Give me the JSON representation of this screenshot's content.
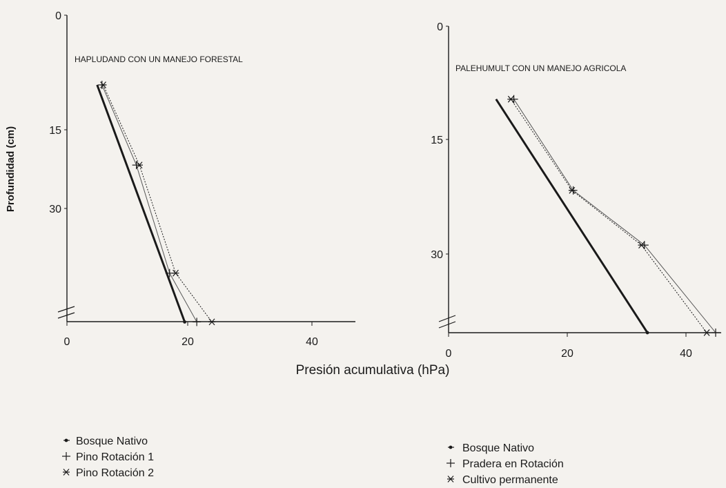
{
  "chart_data": [
    {
      "type": "line",
      "title": "HAPLUDAND CON UN MANEJO FORESTAL",
      "ylabel": "Profundidad (cm)",
      "xlim": [
        0,
        47
      ],
      "ylim": [
        0,
        44
      ],
      "x_ticks": [
        "0",
        "20",
        "40"
      ],
      "y_ticks": [
        "0",
        "15",
        "30"
      ],
      "series": [
        {
          "name": "Bosque Nativo",
          "marker": "dot",
          "line": "bold",
          "points": [
            [
              5,
              10
            ],
            [
              19.5,
              44
            ]
          ]
        },
        {
          "name": "Pino Rotación 1",
          "marker": "plus",
          "line": "thin",
          "points": [
            [
              5.8,
              10
            ],
            [
              11.5,
              21.5
            ],
            [
              17,
              37
            ],
            [
              21.5,
              44
            ]
          ]
        },
        {
          "name": "Pino Rotación 2",
          "marker": "asterisk",
          "line": "dotted",
          "points": [
            [
              6,
              10
            ],
            [
              12,
              21.5
            ],
            [
              18,
              37
            ],
            [
              24,
              44
            ]
          ]
        }
      ]
    },
    {
      "type": "line",
      "title": "PALEHUMULT CON UN MANEJO AGRICOLA",
      "xlim": [
        0,
        46
      ],
      "ylim": [
        0,
        42
      ],
      "x_ticks": [
        "0",
        "20",
        "40"
      ],
      "y_ticks": [
        "0",
        "15",
        "30"
      ],
      "series": [
        {
          "name": "Bosque Nativo",
          "marker": "dot",
          "line": "bold",
          "points": [
            [
              8,
              10
            ],
            [
              33.5,
              42
            ]
          ]
        },
        {
          "name": "Pradera en Rotación",
          "marker": "plus",
          "line": "thin",
          "points": [
            [
              11,
              10
            ],
            [
              21,
              22.5
            ],
            [
              33,
              30
            ],
            [
              45,
              42
            ]
          ]
        },
        {
          "name": "Cultivo permanente",
          "marker": "asterisk",
          "line": "dotted",
          "points": [
            [
              10.5,
              10
            ],
            [
              20.8,
              22.5
            ],
            [
              32.5,
              30
            ],
            [
              43.5,
              42
            ]
          ]
        }
      ]
    }
  ],
  "xlabel": "Presión acumulativa  (hPa)"
}
